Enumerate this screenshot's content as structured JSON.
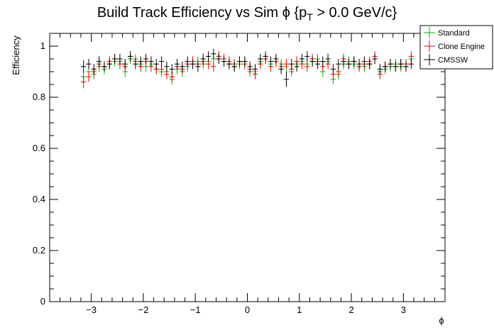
{
  "chart_data": {
    "type": "scatter",
    "title": "Build Track Efficiency vs Sim ϕ {p",
    "title_sub": "T",
    "title_tail": " > 0.0 GeV/c}",
    "xlabel": "ϕ",
    "ylabel": "Efficiency",
    "xlim": [
      -3.8,
      3.8
    ],
    "ylim": [
      0,
      1.05
    ],
    "xticks": [
      -3,
      -2,
      -1,
      0,
      1,
      2,
      3
    ],
    "xtick_labels": [
      "−3",
      "−2",
      "−1",
      "0",
      "1",
      "2",
      "3"
    ],
    "yticks": [
      0,
      0.2,
      0.4,
      0.6,
      0.8,
      1
    ],
    "ytick_labels": [
      "0",
      "0.2",
      "0.4",
      "0.6",
      "0.8",
      "1"
    ],
    "x_bin_width": 0.1,
    "legend_position": "top-right",
    "series": [
      {
        "name": "Standard",
        "color": "#00bb00",
        "x": [
          -3.15,
          -3.05,
          -2.95,
          -2.85,
          -2.75,
          -2.65,
          -2.55,
          -2.45,
          -2.35,
          -2.25,
          -2.15,
          -2.05,
          -1.95,
          -1.85,
          -1.75,
          -1.65,
          -1.55,
          -1.45,
          -1.35,
          -1.25,
          -1.15,
          -1.05,
          -0.95,
          -0.85,
          -0.75,
          -0.65,
          -0.55,
          -0.45,
          -0.35,
          -0.25,
          -0.15,
          -0.05,
          0.05,
          0.15,
          0.25,
          0.35,
          0.45,
          0.55,
          0.65,
          0.75,
          0.85,
          0.95,
          1.05,
          1.15,
          1.25,
          1.35,
          1.45,
          1.55,
          1.65,
          1.75,
          1.85,
          1.95,
          2.05,
          2.15,
          2.25,
          2.35,
          2.45,
          2.55,
          2.65,
          2.75,
          2.85,
          2.95,
          3.05,
          3.15
        ],
        "y": [
          0.88,
          0.9,
          0.89,
          0.92,
          0.91,
          0.93,
          0.94,
          0.94,
          0.9,
          0.95,
          0.95,
          0.93,
          0.92,
          0.93,
          0.91,
          0.9,
          0.9,
          0.87,
          0.91,
          0.9,
          0.92,
          0.93,
          0.94,
          0.93,
          0.94,
          0.95,
          0.96,
          0.94,
          0.93,
          0.92,
          0.93,
          0.94,
          0.9,
          0.9,
          0.94,
          0.95,
          0.93,
          0.94,
          0.93,
          0.92,
          0.9,
          0.93,
          0.94,
          0.93,
          0.94,
          0.95,
          0.9,
          0.94,
          0.87,
          0.89,
          0.93,
          0.94,
          0.93,
          0.92,
          0.92,
          0.93,
          0.95,
          0.9,
          0.91,
          0.92,
          0.93,
          0.92,
          0.92,
          0.95
        ],
        "err": [
          0.025,
          0.02,
          0.02,
          0.02,
          0.02,
          0.02,
          0.02,
          0.02,
          0.02,
          0.02,
          0.02,
          0.02,
          0.02,
          0.02,
          0.02,
          0.02,
          0.02,
          0.02,
          0.02,
          0.02,
          0.02,
          0.02,
          0.02,
          0.02,
          0.02,
          0.02,
          0.02,
          0.02,
          0.02,
          0.02,
          0.02,
          0.02,
          0.02,
          0.02,
          0.02,
          0.02,
          0.02,
          0.02,
          0.02,
          0.02,
          0.02,
          0.02,
          0.02,
          0.02,
          0.02,
          0.02,
          0.02,
          0.02,
          0.02,
          0.02,
          0.02,
          0.02,
          0.02,
          0.02,
          0.02,
          0.02,
          0.02,
          0.02,
          0.02,
          0.02,
          0.02,
          0.02,
          0.02,
          0.02
        ]
      },
      {
        "name": "Clone Engine",
        "color": "#ff0000",
        "x": [
          -3.15,
          -3.05,
          -2.95,
          -2.85,
          -2.75,
          -2.65,
          -2.55,
          -2.45,
          -2.35,
          -2.25,
          -2.15,
          -2.05,
          -1.95,
          -1.85,
          -1.75,
          -1.65,
          -1.55,
          -1.45,
          -1.35,
          -1.25,
          -1.15,
          -1.05,
          -0.95,
          -0.85,
          -0.75,
          -0.65,
          -0.55,
          -0.45,
          -0.35,
          -0.25,
          -0.15,
          -0.05,
          0.05,
          0.15,
          0.25,
          0.35,
          0.45,
          0.55,
          0.65,
          0.75,
          0.85,
          0.95,
          1.05,
          1.15,
          1.25,
          1.35,
          1.45,
          1.55,
          1.65,
          1.75,
          1.85,
          1.95,
          2.05,
          2.15,
          2.25,
          2.35,
          2.45,
          2.55,
          2.65,
          2.75,
          2.85,
          2.95,
          3.05,
          3.15
        ],
        "y": [
          0.86,
          0.88,
          0.9,
          0.93,
          0.92,
          0.94,
          0.95,
          0.93,
          0.92,
          0.96,
          0.94,
          0.92,
          0.94,
          0.92,
          0.91,
          0.91,
          0.89,
          0.88,
          0.92,
          0.91,
          0.93,
          0.94,
          0.93,
          0.94,
          0.93,
          0.92,
          0.96,
          0.95,
          0.94,
          0.93,
          0.94,
          0.93,
          0.91,
          0.89,
          0.93,
          0.95,
          0.92,
          0.94,
          0.92,
          0.93,
          0.91,
          0.94,
          0.93,
          0.92,
          0.95,
          0.94,
          0.92,
          0.93,
          0.89,
          0.9,
          0.95,
          0.93,
          0.94,
          0.92,
          0.93,
          0.94,
          0.96,
          0.89,
          0.92,
          0.93,
          0.92,
          0.93,
          0.93,
          0.96
        ],
        "err": [
          0.025,
          0.02,
          0.02,
          0.02,
          0.02,
          0.02,
          0.02,
          0.02,
          0.02,
          0.02,
          0.02,
          0.02,
          0.02,
          0.02,
          0.02,
          0.02,
          0.02,
          0.02,
          0.02,
          0.02,
          0.02,
          0.02,
          0.02,
          0.02,
          0.02,
          0.02,
          0.02,
          0.02,
          0.02,
          0.02,
          0.02,
          0.02,
          0.02,
          0.02,
          0.02,
          0.02,
          0.02,
          0.02,
          0.02,
          0.02,
          0.02,
          0.02,
          0.02,
          0.02,
          0.02,
          0.02,
          0.02,
          0.02,
          0.02,
          0.02,
          0.02,
          0.02,
          0.02,
          0.02,
          0.02,
          0.02,
          0.02,
          0.02,
          0.02,
          0.02,
          0.02,
          0.02,
          0.02,
          0.02
        ]
      },
      {
        "name": "CMSSW",
        "color": "#000000",
        "x": [
          -3.15,
          -3.05,
          -2.95,
          -2.85,
          -2.75,
          -2.65,
          -2.55,
          -2.45,
          -2.35,
          -2.25,
          -2.15,
          -2.05,
          -1.95,
          -1.85,
          -1.75,
          -1.65,
          -1.55,
          -1.45,
          -1.35,
          -1.25,
          -1.15,
          -1.05,
          -0.95,
          -0.85,
          -0.75,
          -0.65,
          -0.55,
          -0.45,
          -0.35,
          -0.25,
          -0.15,
          -0.05,
          0.05,
          0.15,
          0.25,
          0.35,
          0.45,
          0.55,
          0.65,
          0.75,
          0.85,
          0.95,
          1.05,
          1.15,
          1.25,
          1.35,
          1.45,
          1.55,
          1.65,
          1.75,
          1.85,
          1.95,
          2.05,
          2.15,
          2.25,
          2.35,
          2.45,
          2.55,
          2.65,
          2.75,
          2.85,
          2.95,
          3.05,
          3.15
        ],
        "y": [
          0.92,
          0.93,
          0.91,
          0.94,
          0.92,
          0.93,
          0.95,
          0.95,
          0.93,
          0.96,
          0.93,
          0.94,
          0.95,
          0.94,
          0.93,
          0.94,
          0.92,
          0.91,
          0.93,
          0.92,
          0.94,
          0.93,
          0.92,
          0.95,
          0.96,
          0.97,
          0.95,
          0.94,
          0.93,
          0.92,
          0.94,
          0.94,
          0.92,
          0.91,
          0.95,
          0.96,
          0.94,
          0.95,
          0.91,
          0.87,
          0.93,
          0.92,
          0.95,
          0.96,
          0.94,
          0.93,
          0.94,
          0.95,
          0.91,
          0.93,
          0.94,
          0.93,
          0.94,
          0.93,
          0.94,
          0.93,
          0.95,
          0.91,
          0.92,
          0.93,
          0.92,
          0.93,
          0.92,
          0.93
        ],
        "err": [
          0.025,
          0.02,
          0.02,
          0.02,
          0.02,
          0.02,
          0.02,
          0.02,
          0.02,
          0.02,
          0.02,
          0.02,
          0.02,
          0.02,
          0.02,
          0.02,
          0.02,
          0.02,
          0.02,
          0.02,
          0.02,
          0.02,
          0.02,
          0.02,
          0.02,
          0.02,
          0.02,
          0.02,
          0.02,
          0.02,
          0.02,
          0.02,
          0.02,
          0.02,
          0.02,
          0.02,
          0.02,
          0.02,
          0.02,
          0.03,
          0.02,
          0.02,
          0.02,
          0.02,
          0.02,
          0.02,
          0.02,
          0.02,
          0.02,
          0.02,
          0.02,
          0.02,
          0.02,
          0.02,
          0.02,
          0.02,
          0.02,
          0.02,
          0.02,
          0.02,
          0.02,
          0.02,
          0.02,
          0.02
        ]
      }
    ]
  }
}
